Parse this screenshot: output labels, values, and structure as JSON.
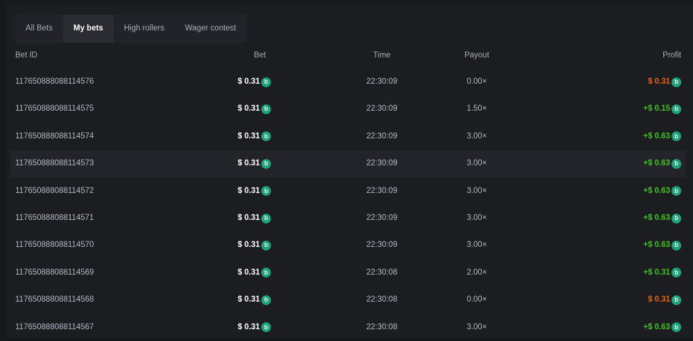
{
  "tabs": [
    {
      "label": "All Bets"
    },
    {
      "label": "My bets",
      "active": true
    },
    {
      "label": "High rollers"
    },
    {
      "label": "Wager contest"
    }
  ],
  "columns": {
    "id": "Bet ID",
    "bet": "Bet",
    "time": "Time",
    "payout": "Payout",
    "profit": "Profit"
  },
  "colors": {
    "win": "#3dc11f",
    "loss": "#e8620f",
    "coin": "#1fa37a"
  },
  "coin_icon": "b",
  "rows": [
    {
      "id": "117650888088114576",
      "bet": "$ 0.31",
      "time": "22:30:09",
      "payout": "0.00×",
      "profit": "$ 0.31",
      "win": false
    },
    {
      "id": "117650888088114575",
      "bet": "$ 0.31",
      "time": "22:30:09",
      "payout": "1.50×",
      "profit": "+$ 0.15",
      "win": true
    },
    {
      "id": "117650888088114574",
      "bet": "$ 0.31",
      "time": "22:30:09",
      "payout": "3.00×",
      "profit": "+$ 0.63",
      "win": true
    },
    {
      "id": "117650888088114573",
      "bet": "$ 0.31",
      "time": "22:30:09",
      "payout": "3.00×",
      "profit": "+$ 0.63",
      "win": true
    },
    {
      "id": "117650888088114572",
      "bet": "$ 0.31",
      "time": "22:30:09",
      "payout": "3.00×",
      "profit": "+$ 0.63",
      "win": true
    },
    {
      "id": "117650888088114571",
      "bet": "$ 0.31",
      "time": "22:30:09",
      "payout": "3.00×",
      "profit": "+$ 0.63",
      "win": true
    },
    {
      "id": "117650888088114570",
      "bet": "$ 0.31",
      "time": "22:30:09",
      "payout": "3.00×",
      "profit": "+$ 0.63",
      "win": true
    },
    {
      "id": "117650888088114569",
      "bet": "$ 0.31",
      "time": "22:30:08",
      "payout": "2.00×",
      "profit": "+$ 0.31",
      "win": true
    },
    {
      "id": "117650888088114568",
      "bet": "$ 0.31",
      "time": "22:30:08",
      "payout": "0.00×",
      "profit": "$ 0.31",
      "win": false
    },
    {
      "id": "117650888088114567",
      "bet": "$ 0.31",
      "time": "22:30:08",
      "payout": "3.00×",
      "profit": "+$ 0.63",
      "win": true
    }
  ]
}
